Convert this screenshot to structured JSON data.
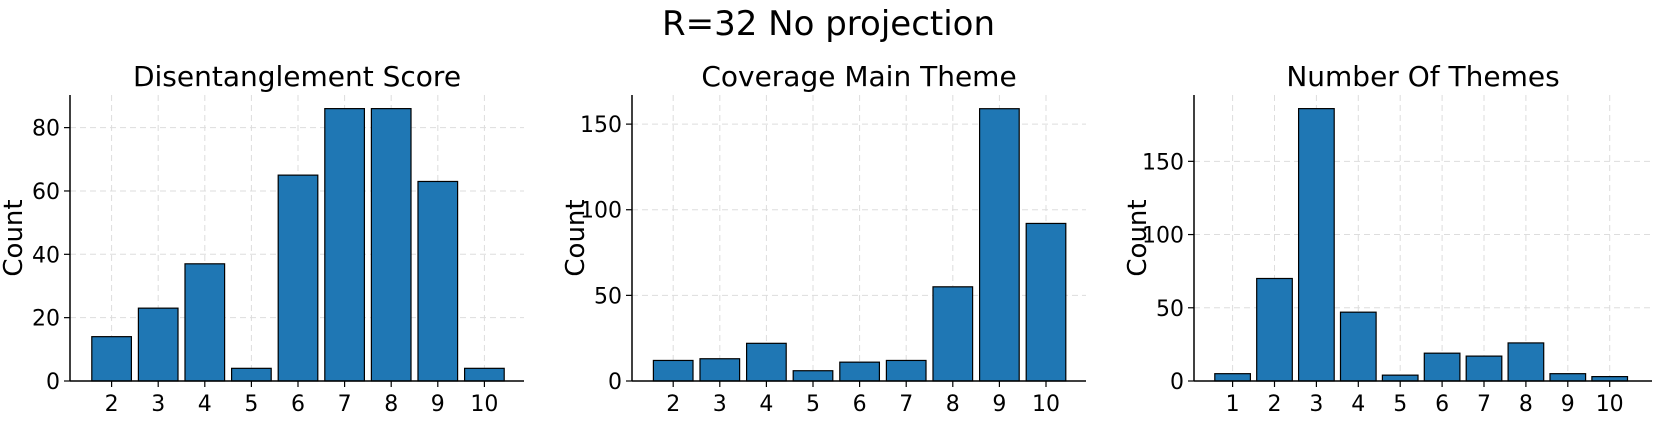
{
  "suptitle": "R=32 No projection",
  "chart_data": [
    {
      "type": "bar",
      "title": "Disentanglement Score",
      "ylabel": "Count",
      "xlabel": "",
      "categories": [
        "2",
        "3",
        "4",
        "5",
        "6",
        "7",
        "8",
        "9",
        "10"
      ],
      "values": [
        14,
        23,
        37,
        4,
        65,
        86,
        86,
        63,
        4
      ],
      "yticks": [
        0,
        20,
        40,
        60,
        80
      ],
      "ylim": [
        0,
        90.3
      ],
      "grid": true,
      "bar_color": "#1f77b4"
    },
    {
      "type": "bar",
      "title": "Coverage Main Theme",
      "ylabel": "Count",
      "xlabel": "",
      "categories": [
        "2",
        "3",
        "4",
        "5",
        "6",
        "7",
        "8",
        "9",
        "10"
      ],
      "values": [
        12,
        13,
        22,
        6,
        11,
        12,
        55,
        159,
        92
      ],
      "yticks": [
        0,
        50,
        100,
        150
      ],
      "ylim": [
        0,
        167
      ],
      "grid": true,
      "bar_color": "#1f77b4"
    },
    {
      "type": "bar",
      "title": "Number Of Themes",
      "ylabel": "Count",
      "xlabel": "",
      "categories": [
        "1",
        "2",
        "3",
        "4",
        "5",
        "6",
        "7",
        "8",
        "9",
        "10"
      ],
      "values": [
        5,
        70,
        186,
        47,
        4,
        19,
        17,
        26,
        5,
        3
      ],
      "yticks": [
        0,
        50,
        100,
        150
      ],
      "ylim": [
        0,
        195.3
      ],
      "grid": true,
      "bar_color": "#1f77b4"
    }
  ]
}
